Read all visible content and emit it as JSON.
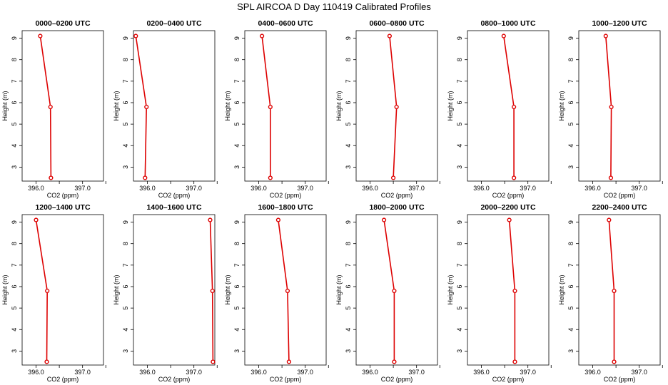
{
  "figure": {
    "title": "SPL AIRCOA D  Day 110419  Calibrated Profiles"
  },
  "chart_data": {
    "type": "line",
    "xlabel": "CO2 (ppm)",
    "ylabel": "Height (m)",
    "xlim": [
      395.7,
      397.45
    ],
    "ylim": [
      2.35,
      9.35
    ],
    "xticks": [
      396.0,
      396.5,
      397.0,
      397.5
    ],
    "xtick_labels": [
      "396.0",
      "",
      "397.0",
      ""
    ],
    "yticks": [
      3,
      4,
      5,
      6,
      7,
      8,
      9
    ],
    "heights": [
      2.5,
      5.8,
      9.1
    ],
    "color": "#dd0000",
    "panels": [
      {
        "title": "0000–0200 UTC",
        "co2": [
          396.32,
          396.31,
          396.09
        ]
      },
      {
        "title": "0200–0400 UTC",
        "co2": [
          395.95,
          395.98,
          395.75
        ]
      },
      {
        "title": "0400–0600 UTC",
        "co2": [
          396.25,
          396.25,
          396.07
        ]
      },
      {
        "title": "0600–0800 UTC",
        "co2": [
          396.5,
          396.57,
          396.42
        ]
      },
      {
        "title": "0800–1000 UTC",
        "co2": [
          396.7,
          396.7,
          396.48
        ]
      },
      {
        "title": "1000–1200 UTC",
        "co2": [
          396.39,
          396.4,
          396.28
        ]
      },
      {
        "title": "1200–1400 UTC",
        "co2": [
          396.23,
          396.24,
          396.0
        ]
      },
      {
        "title": "1400–1600 UTC",
        "co2": [
          397.41,
          397.4,
          397.35
        ]
      },
      {
        "title": "1600–1800 UTC",
        "co2": [
          396.65,
          396.62,
          396.42
        ]
      },
      {
        "title": "1800–2000 UTC",
        "co2": [
          396.52,
          396.52,
          396.3
        ]
      },
      {
        "title": "2000–2200 UTC",
        "co2": [
          396.72,
          396.72,
          396.6
        ]
      },
      {
        "title": "2200–2400 UTC",
        "co2": [
          396.46,
          396.46,
          396.35
        ]
      }
    ]
  }
}
